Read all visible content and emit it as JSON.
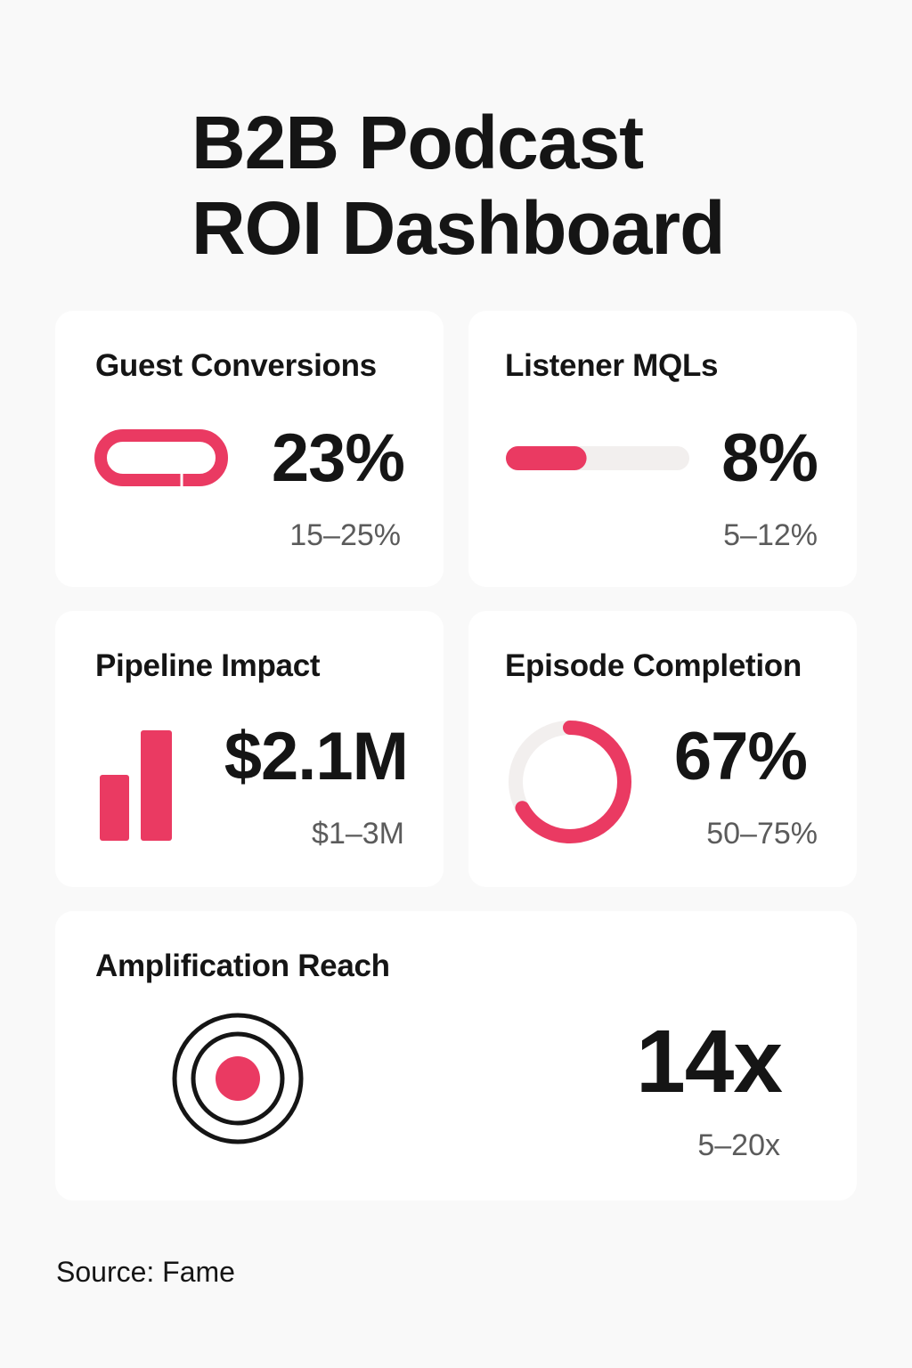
{
  "title": {
    "line1": "B2B Podcast",
    "line2": "ROI Dashboard"
  },
  "colors": {
    "accent": "#ea3a62",
    "track": "#f2efee",
    "text": "#151515",
    "muted": "#5b5b5b",
    "background": "#f9f9f9",
    "card": "#ffffff"
  },
  "cards": {
    "guest_conversions": {
      "title": "Guest Conversions",
      "value": "23%",
      "range": "15–25%",
      "icon": "pill-icon"
    },
    "listener_mqls": {
      "title": "Listener MQLs",
      "value": "8%",
      "range": "5–12%",
      "icon": "progress-bar",
      "progress": 0.44
    },
    "pipeline_impact": {
      "title": "Pipeline Impact",
      "value": "$2.1M",
      "range": "$1–3M",
      "icon": "bar-chart-icon"
    },
    "episode_completion": {
      "title": "Episode Completion",
      "value": "67%",
      "range": "50–75%",
      "icon": "ring-progress",
      "progress": 0.67
    },
    "amplification_reach": {
      "title": "Amplification Reach",
      "value": "14x",
      "range": "5–20x",
      "icon": "target-icon"
    }
  },
  "source": "Source: Fame"
}
